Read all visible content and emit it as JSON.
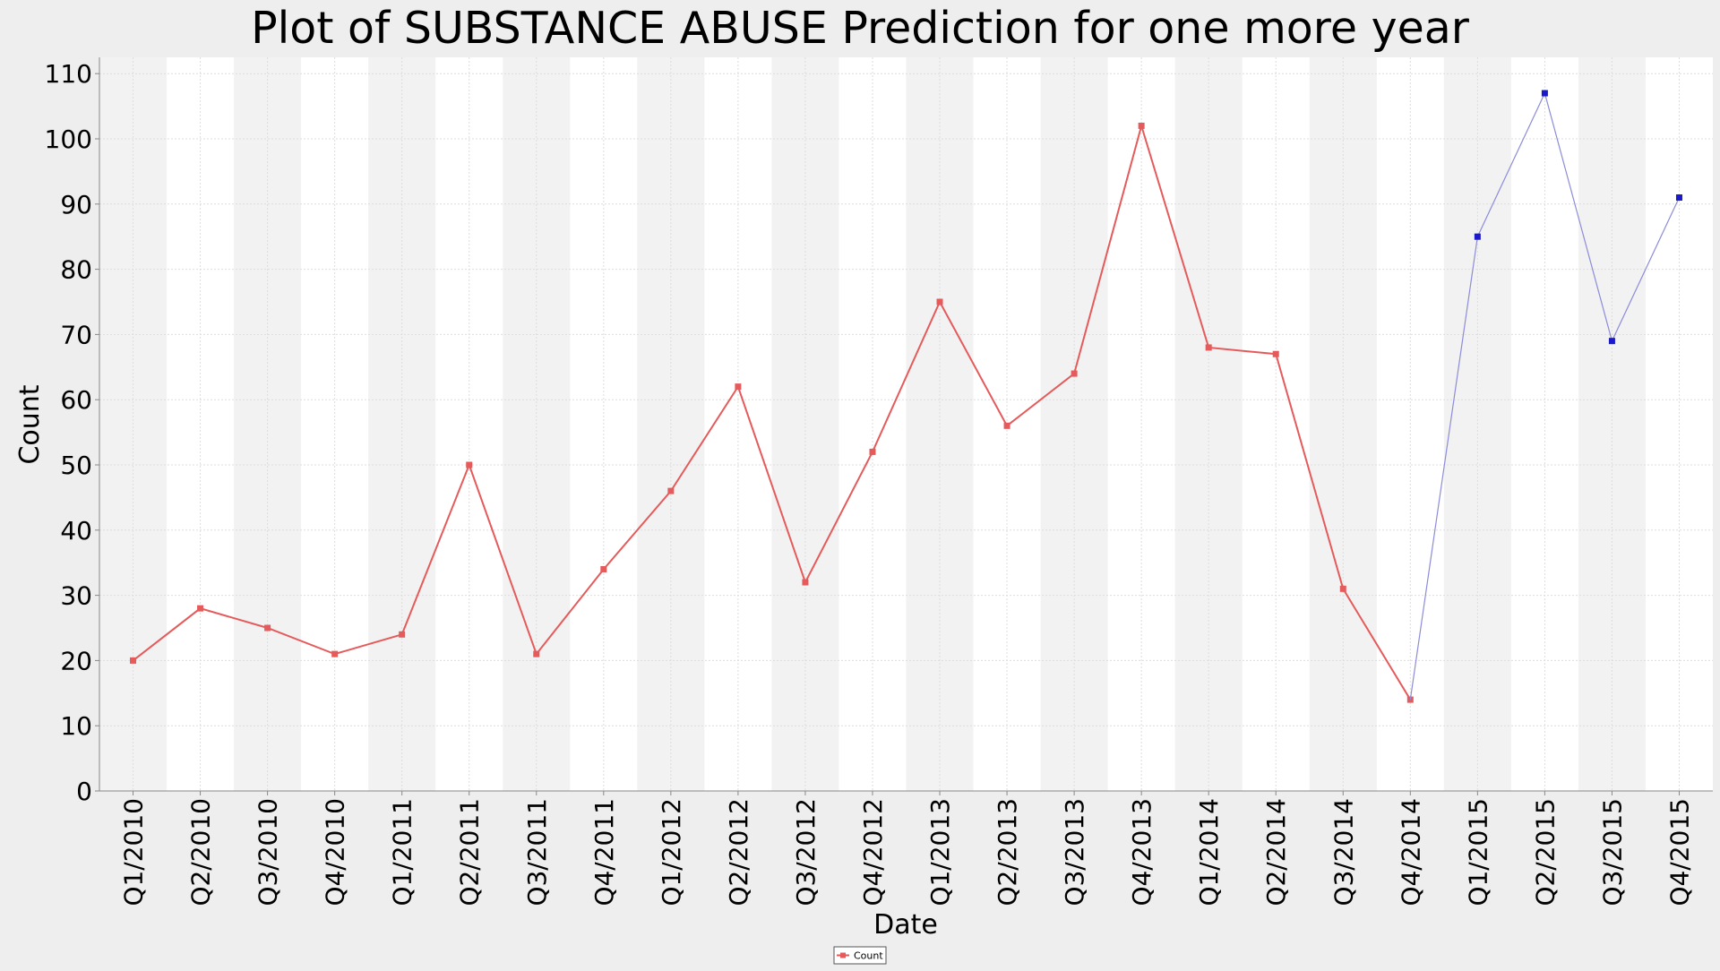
{
  "chart_data": {
    "type": "line",
    "title": "Plot of SUBSTANCE ABUSE Prediction for one more year",
    "xlabel": "Date",
    "ylabel": "Count",
    "ylim": [
      0,
      112.5
    ],
    "yticks": [
      0,
      10,
      20,
      30,
      40,
      50,
      60,
      70,
      80,
      90,
      100,
      110
    ],
    "categories": [
      "Q1/2010",
      "Q2/2010",
      "Q3/2010",
      "Q4/2010",
      "Q1/2011",
      "Q2/2011",
      "Q3/2011",
      "Q4/2011",
      "Q1/2012",
      "Q2/2012",
      "Q3/2012",
      "Q4/2012",
      "Q1/2013",
      "Q2/2013",
      "Q3/2013",
      "Q4/2013",
      "Q1/2014",
      "Q2/2014",
      "Q3/2014",
      "Q4/2014",
      "Q1/2015",
      "Q2/2015",
      "Q3/2015",
      "Q4/2015"
    ],
    "series": [
      {
        "name": "Count",
        "color": "#e55a5a",
        "in_legend": true,
        "x": [
          "Q1/2010",
          "Q2/2010",
          "Q3/2010",
          "Q4/2010",
          "Q1/2011",
          "Q2/2011",
          "Q3/2011",
          "Q4/2011",
          "Q1/2012",
          "Q2/2012",
          "Q3/2012",
          "Q4/2012",
          "Q1/2013",
          "Q2/2013",
          "Q3/2013",
          "Q4/2013",
          "Q1/2014",
          "Q2/2014",
          "Q3/2014",
          "Q4/2014"
        ],
        "values": [
          20,
          28,
          25,
          21,
          24,
          50,
          21,
          34,
          46,
          62,
          32,
          52,
          75,
          56,
          64,
          102,
          68,
          67,
          31,
          14
        ]
      },
      {
        "color": "#1a1acc",
        "line_color": "#8c8cd9",
        "in_legend": false,
        "x": [
          "Q4/2014",
          "Q1/2015",
          "Q2/2015",
          "Q3/2015",
          "Q4/2015"
        ],
        "values": [
          14,
          85,
          107,
          69,
          91
        ],
        "marker_from_index": 1
      }
    ],
    "grid": true,
    "alternating_column_shading": true,
    "legend_position": "bottom-center"
  }
}
